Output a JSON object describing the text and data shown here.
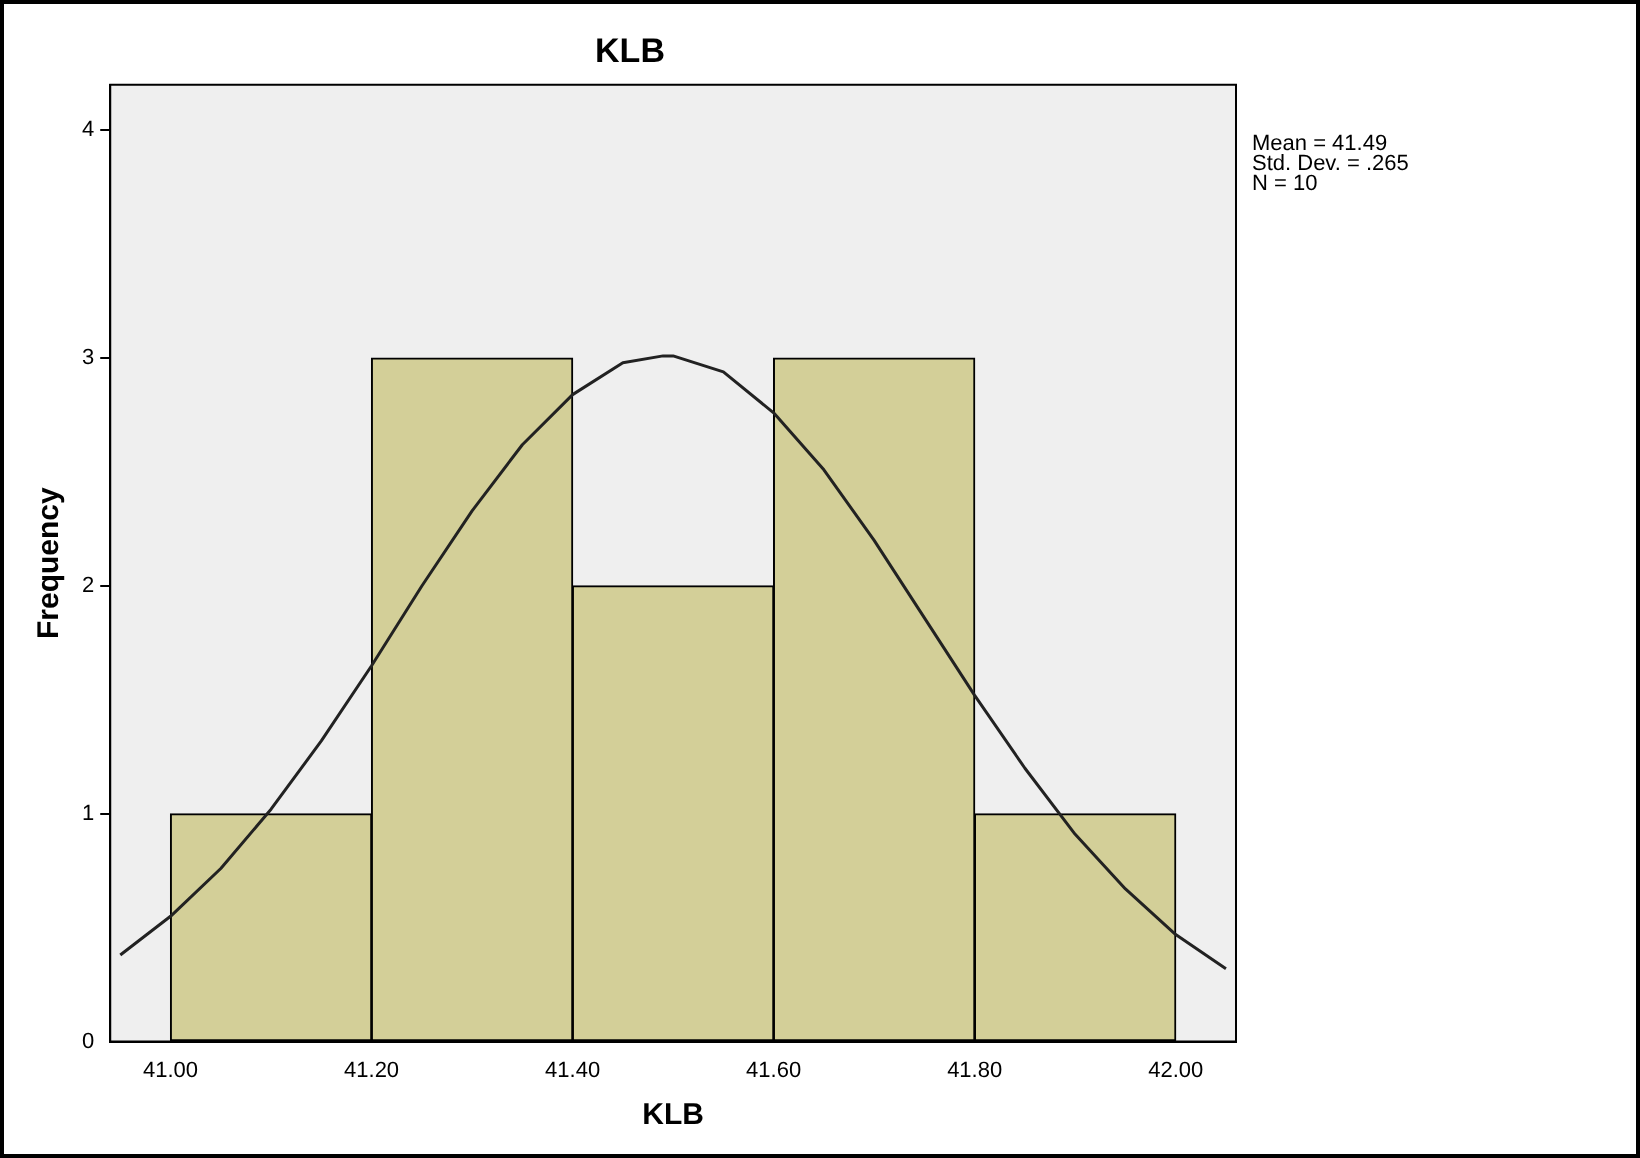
{
  "chart_data": {
    "type": "histogram",
    "title": "KLB",
    "xlabel": "KLB",
    "ylabel": "Frequency",
    "bins": [
      41.0,
      41.2,
      41.4,
      41.6,
      41.8,
      42.0
    ],
    "values": [
      1,
      3,
      2,
      3,
      1
    ],
    "color": "#d3cf98",
    "series": [
      {
        "type": "line",
        "color": "#222222",
        "x": [
          40.95,
          41.0,
          41.05,
          41.1,
          41.15,
          41.2,
          41.25,
          41.3,
          41.35,
          41.4,
          41.45,
          41.49,
          41.5,
          41.55,
          41.6,
          41.65,
          41.7,
          41.75,
          41.8,
          41.85,
          41.9,
          41.95,
          42.0,
          42.05
        ],
        "values": [
          0.38,
          0.55,
          0.76,
          1.02,
          1.32,
          1.65,
          2.0,
          2.33,
          2.62,
          2.84,
          2.98,
          3.01,
          3.01,
          2.94,
          2.76,
          2.51,
          2.2,
          1.86,
          1.52,
          1.2,
          0.91,
          0.67,
          0.47,
          0.32
        ]
      }
    ],
    "xlim": [
      40.94,
      42.06
    ],
    "ylim": [
      0,
      4.2
    ],
    "xticks": [
      {
        "value": 41.0,
        "label": "41.00"
      },
      {
        "value": 41.2,
        "label": "41.20"
      },
      {
        "value": 41.4,
        "label": "41.40"
      },
      {
        "value": 41.6,
        "label": "41.60"
      },
      {
        "value": 41.8,
        "label": "41.80"
      },
      {
        "value": 42.0,
        "label": "42.00"
      }
    ],
    "yticks": [
      0,
      1,
      2,
      3,
      4
    ],
    "annotations": [
      "Mean = 41.49",
      "Std. Dev. = .265",
      "N = 10"
    ],
    "grid": false,
    "legend": false
  }
}
